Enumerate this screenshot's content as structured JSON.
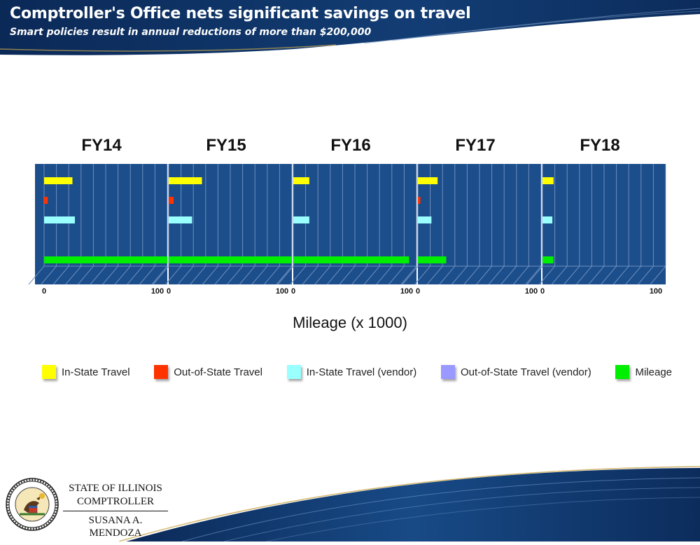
{
  "header": {
    "title": "Comptroller's Office nets significant savings on travel",
    "subtitle": "Smart policies result in annual reductions of more than $200,000"
  },
  "chart_data": {
    "type": "bar",
    "orientation": "horizontal",
    "xlabel": "Mileage (x 1000)",
    "xlim": [
      0,
      100
    ],
    "x_ticks": [
      "0",
      "100"
    ],
    "series": [
      {
        "name": "In-State Travel",
        "color": "#ffff00"
      },
      {
        "name": "Out-of-State Travel",
        "color": "#ff3300"
      },
      {
        "name": "In-State Travel (vendor)",
        "color": "#99ffff"
      },
      {
        "name": "Out-of-State Travel (vendor)",
        "color": "#9999ff"
      },
      {
        "name": "Mileage",
        "color": "#00ee00"
      }
    ],
    "panels": [
      {
        "title": "FY14",
        "values": [
          23,
          3,
          25,
          0,
          100
        ]
      },
      {
        "title": "FY15",
        "values": [
          27,
          4,
          19,
          0,
          100
        ]
      },
      {
        "title": "FY16",
        "values": [
          13,
          0,
          13,
          0,
          94
        ]
      },
      {
        "title": "FY17",
        "values": [
          16,
          2,
          11,
          0,
          23
        ]
      },
      {
        "title": "FY18",
        "values": [
          9,
          0,
          8,
          0,
          9
        ]
      }
    ]
  },
  "footer": {
    "line1": "STATE OF ILLINOIS",
    "line2": "COMPTROLLER",
    "line3": "SUSANA A. MENDOZA",
    "seal_text": "SEAL OF THE STATE OF ILLINOIS · AUG. 26TH 1818"
  },
  "colors": {
    "banner": "#0d2f5e",
    "plot_bg": "#1b4e8a",
    "grid": "#6f8fbf"
  }
}
